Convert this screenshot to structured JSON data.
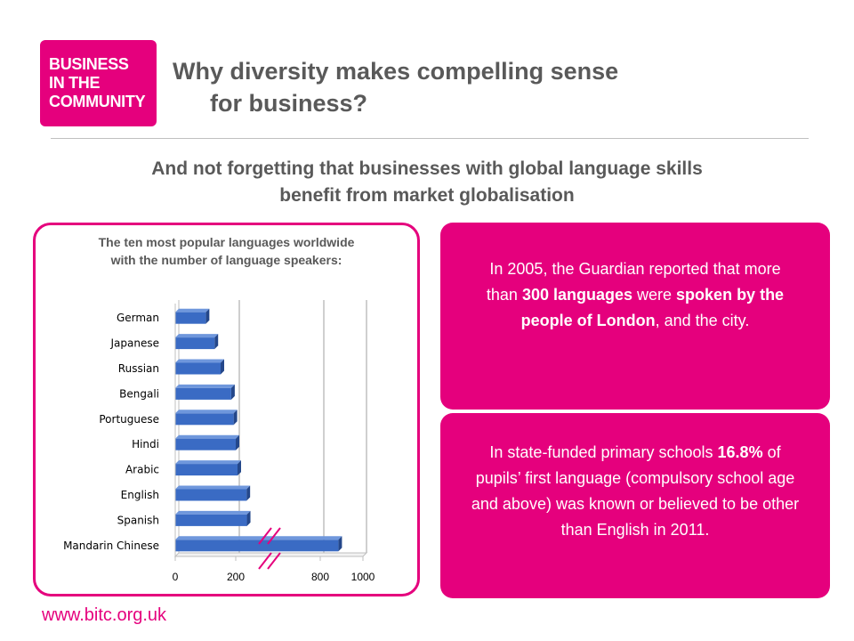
{
  "logo": {
    "lines": [
      "BUSINESS",
      "IN THE",
      "COMMUNITY"
    ]
  },
  "title": {
    "line1": "Why diversity makes compelling sense",
    "line2": "for business?"
  },
  "subtitle": {
    "line1": "And not forgetting that businesses with global language skills",
    "line2": "benefit from market globalisation"
  },
  "chart_panel": {
    "title_line1": "The ten most popular languages worldwide",
    "title_line2": "with the number of language speakers:"
  },
  "chart_data": {
    "type": "bar",
    "orientation": "horizontal",
    "title": "The ten most popular languages worldwide with the number of language speakers:",
    "categories": [
      "German",
      "Japanese",
      "Russian",
      "Bengali",
      "Portuguese",
      "Hindi",
      "Arabic",
      "English",
      "Spanish",
      "Mandarin Chinese"
    ],
    "values": [
      101,
      130,
      150,
      185,
      193,
      200,
      221,
      328,
      332,
      885
    ],
    "xlabel": "",
    "ylabel": "",
    "x_ticks": [
      "0",
      "200",
      "800",
      "1000"
    ],
    "axis_break": "between 200 and 800",
    "grid": true,
    "legend": "none",
    "bar_color": "#3a6bc4"
  },
  "box_top": {
    "p1": "In 2005, the Guardian reported that more than ",
    "b1": "300 languages",
    "p2": " were ",
    "b2": "spoken by the people of London",
    "p3": ", and the city."
  },
  "box_bottom": {
    "p1": "In state-funded primary schools ",
    "b1": "16.8%",
    "p2": " of pupils’ first language (compulsory school age and above) was known or believed to be other than English in 2011."
  },
  "footer": {
    "url": "www.bitc.org.uk"
  },
  "colors": {
    "brand": "#e5007d",
    "text": "#595959",
    "bar": "#3a6bc4"
  }
}
